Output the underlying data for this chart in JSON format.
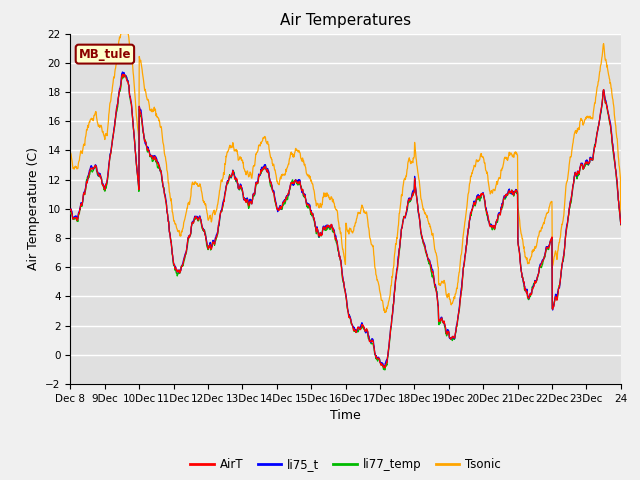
{
  "title": "Air Temperatures",
  "xlabel": "Time",
  "ylabel": "Air Temperature (C)",
  "ylim": [
    -2,
    22
  ],
  "yticks": [
    -2,
    0,
    2,
    4,
    6,
    8,
    10,
    12,
    14,
    16,
    18,
    20,
    22
  ],
  "x_tick_labels": [
    "Dec 8",
    "9Dec",
    "10Dec",
    "11Dec",
    "12Dec",
    "13Dec",
    "14Dec",
    "15Dec",
    "16Dec",
    "17Dec",
    "18Dec",
    "19Dec",
    "20Dec",
    "21Dec",
    "22Dec",
    "23Dec",
    "24"
  ],
  "station_label": "MB_tule",
  "series_colors": {
    "AirT": "#ff0000",
    "li75_t": "#0000ff",
    "li77_temp": "#00bb00",
    "Tsonic": "#ffa500"
  },
  "legend_labels": [
    "AirT",
    "li75_t",
    "li77_temp",
    "Tsonic"
  ],
  "fig_bg_color": "#f0f0f0",
  "plot_bg": "#e0e0e0",
  "grid_color": "#ffffff",
  "title_fontsize": 11,
  "axis_fontsize": 9,
  "tick_fontsize": 7.5
}
